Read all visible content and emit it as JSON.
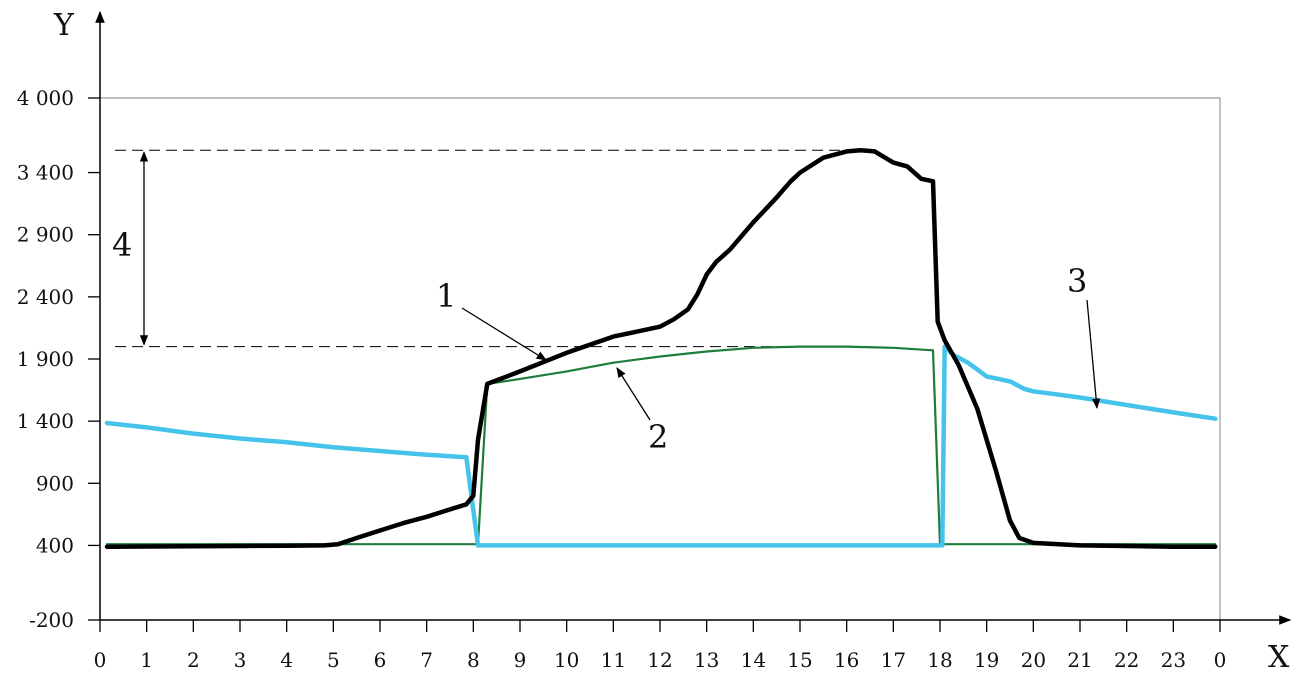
{
  "chart_data": {
    "type": "line",
    "title": "",
    "xlabel": "X",
    "ylabel": "Y",
    "xlim": [
      0,
      24
    ],
    "ylim": [
      -200,
      4000
    ],
    "x_ticks": [
      0,
      1,
      2,
      3,
      4,
      5,
      6,
      7,
      8,
      9,
      10,
      11,
      12,
      13,
      14,
      15,
      16,
      17,
      18,
      19,
      20,
      21,
      22,
      23,
      24
    ],
    "x_tick_labels": [
      "0",
      "1",
      "2",
      "3",
      "4",
      "5",
      "6",
      "7",
      "8",
      "9",
      "10",
      "11",
      "12",
      "13",
      "14",
      "15",
      "16",
      "17",
      "18",
      "19",
      "20",
      "21",
      "22",
      "23",
      "0"
    ],
    "y_ticks": [
      -200,
      400,
      900,
      1400,
      1900,
      2400,
      2900,
      3400,
      4000
    ],
    "y_tick_labels": [
      "-200",
      "400",
      "900",
      "1 400",
      "1 900",
      "2 400",
      "2 900",
      "3 400",
      "4 000"
    ],
    "colors": {
      "series_1": "#000000",
      "series_2": "#1e7d3c",
      "series_3": "#45c3ea",
      "axis": "#000000",
      "frame": "#999999",
      "guides": "#000000"
    },
    "series": [
      {
        "id": "1",
        "color": "#000000",
        "x": [
          0.15,
          1,
          2,
          3,
          4,
          4.8,
          5.1,
          5.5,
          6,
          6.5,
          7,
          7.5,
          7.85,
          8.0,
          8.1,
          8.3,
          9,
          10,
          11,
          12,
          12.3,
          12.6,
          12.8,
          13,
          13.2,
          13.5,
          14,
          14.5,
          14.8,
          15,
          15.5,
          16,
          16.3,
          16.6,
          17,
          17.3,
          17.6,
          17.85,
          17.95,
          18.1,
          18.4,
          18.8,
          19.2,
          19.5,
          19.7,
          20,
          21,
          22,
          23,
          23.9
        ],
        "y": [
          390,
          391,
          393,
          395,
          398,
          400,
          410,
          460,
          520,
          580,
          630,
          690,
          730,
          800,
          1250,
          1700,
          1800,
          1950,
          2080,
          2160,
          2220,
          2300,
          2420,
          2580,
          2680,
          2780,
          3000,
          3200,
          3330,
          3400,
          3520,
          3570,
          3580,
          3570,
          3480,
          3450,
          3350,
          3330,
          2200,
          2050,
          1850,
          1500,
          1000,
          600,
          460,
          420,
          400,
          395,
          390,
          390
        ]
      },
      {
        "id": "2",
        "color": "#1e7d3c",
        "x": [
          0.15,
          8.0,
          8.1,
          8.3,
          9,
          10,
          11,
          12,
          13,
          14,
          15,
          16,
          17,
          17.85,
          18.0,
          18.1,
          23.9
        ],
        "y": [
          410,
          410,
          410,
          1700,
          1740,
          1800,
          1870,
          1920,
          1960,
          1990,
          2000,
          2000,
          1990,
          1970,
          410,
          410,
          410
        ]
      },
      {
        "id": "3",
        "color": "#45c3ea",
        "x": [
          0.15,
          1,
          2,
          3,
          4,
          5,
          6,
          7,
          7.85,
          8.1,
          8.2,
          17.9,
          18.05,
          18.1,
          18.3,
          18.6,
          19,
          19.5,
          19.8,
          20,
          21,
          22,
          23,
          23.9
        ],
        "y": [
          1385,
          1350,
          1300,
          1260,
          1230,
          1190,
          1160,
          1130,
          1110,
          400,
          400,
          400,
          400,
          2000,
          1930,
          1870,
          1760,
          1720,
          1660,
          1640,
          1590,
          1530,
          1470,
          1420
        ]
      }
    ],
    "annotations": [
      {
        "text": "1",
        "target_series": "1"
      },
      {
        "text": "2",
        "target_series": "2"
      },
      {
        "text": "3",
        "target_series": "3"
      },
      {
        "text": "4",
        "description": "difference between the peak of curve 1 and the peak of curve 2"
      }
    ],
    "reference_levels": {
      "upper": 3580,
      "lower": 2000
    },
    "grid": false,
    "legend": "none"
  }
}
